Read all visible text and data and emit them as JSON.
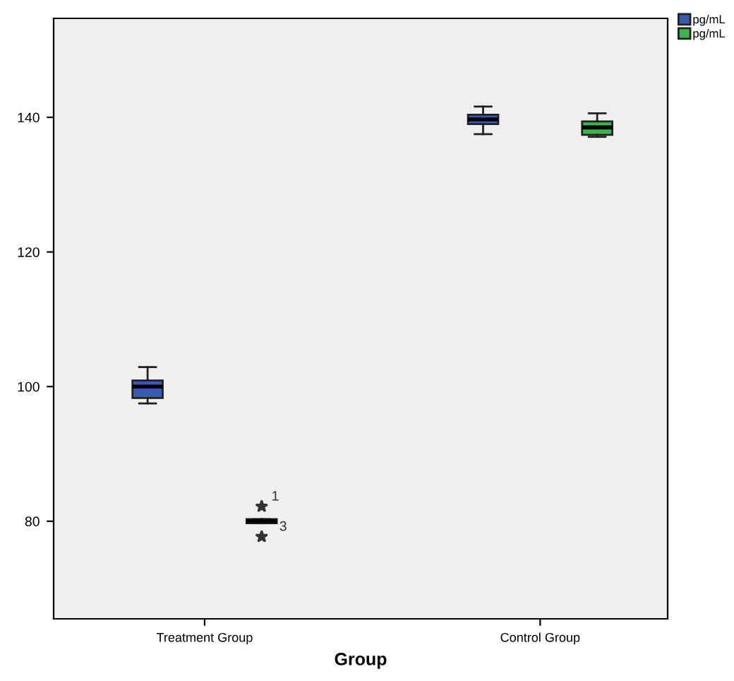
{
  "chart_data": {
    "type": "box",
    "xlabel": "Group",
    "categories": [
      "Treatment Group",
      "Control Group"
    ],
    "ylim": [
      65.5,
      154.7
    ],
    "yticks": [
      80,
      100,
      120,
      140
    ],
    "grid": false,
    "legend": "top right",
    "series": [
      {
        "name": "pg/mL",
        "color": "#3a5bb5",
        "boxes": [
          {
            "low": 97.5,
            "q1": 98.3,
            "median": 100.0,
            "q3": 100.9,
            "high": 102.9
          },
          {
            "low": 137.5,
            "q1": 139.0,
            "median": 139.7,
            "q3": 140.4,
            "high": 141.6
          }
        ]
      },
      {
        "name": "pg/mL",
        "color": "#3cb44b",
        "boxes": [
          {
            "low": 79.7,
            "q1": 79.7,
            "median": 80.0,
            "q3": 80.3,
            "high": 80.3,
            "outliers": [
              82.2,
              77.7
            ]
          },
          {
            "low": 137.1,
            "q1": 137.4,
            "median": 138.5,
            "q3": 139.4,
            "high": 140.6
          }
        ]
      }
    ],
    "annotations": [
      "1",
      "3"
    ]
  }
}
